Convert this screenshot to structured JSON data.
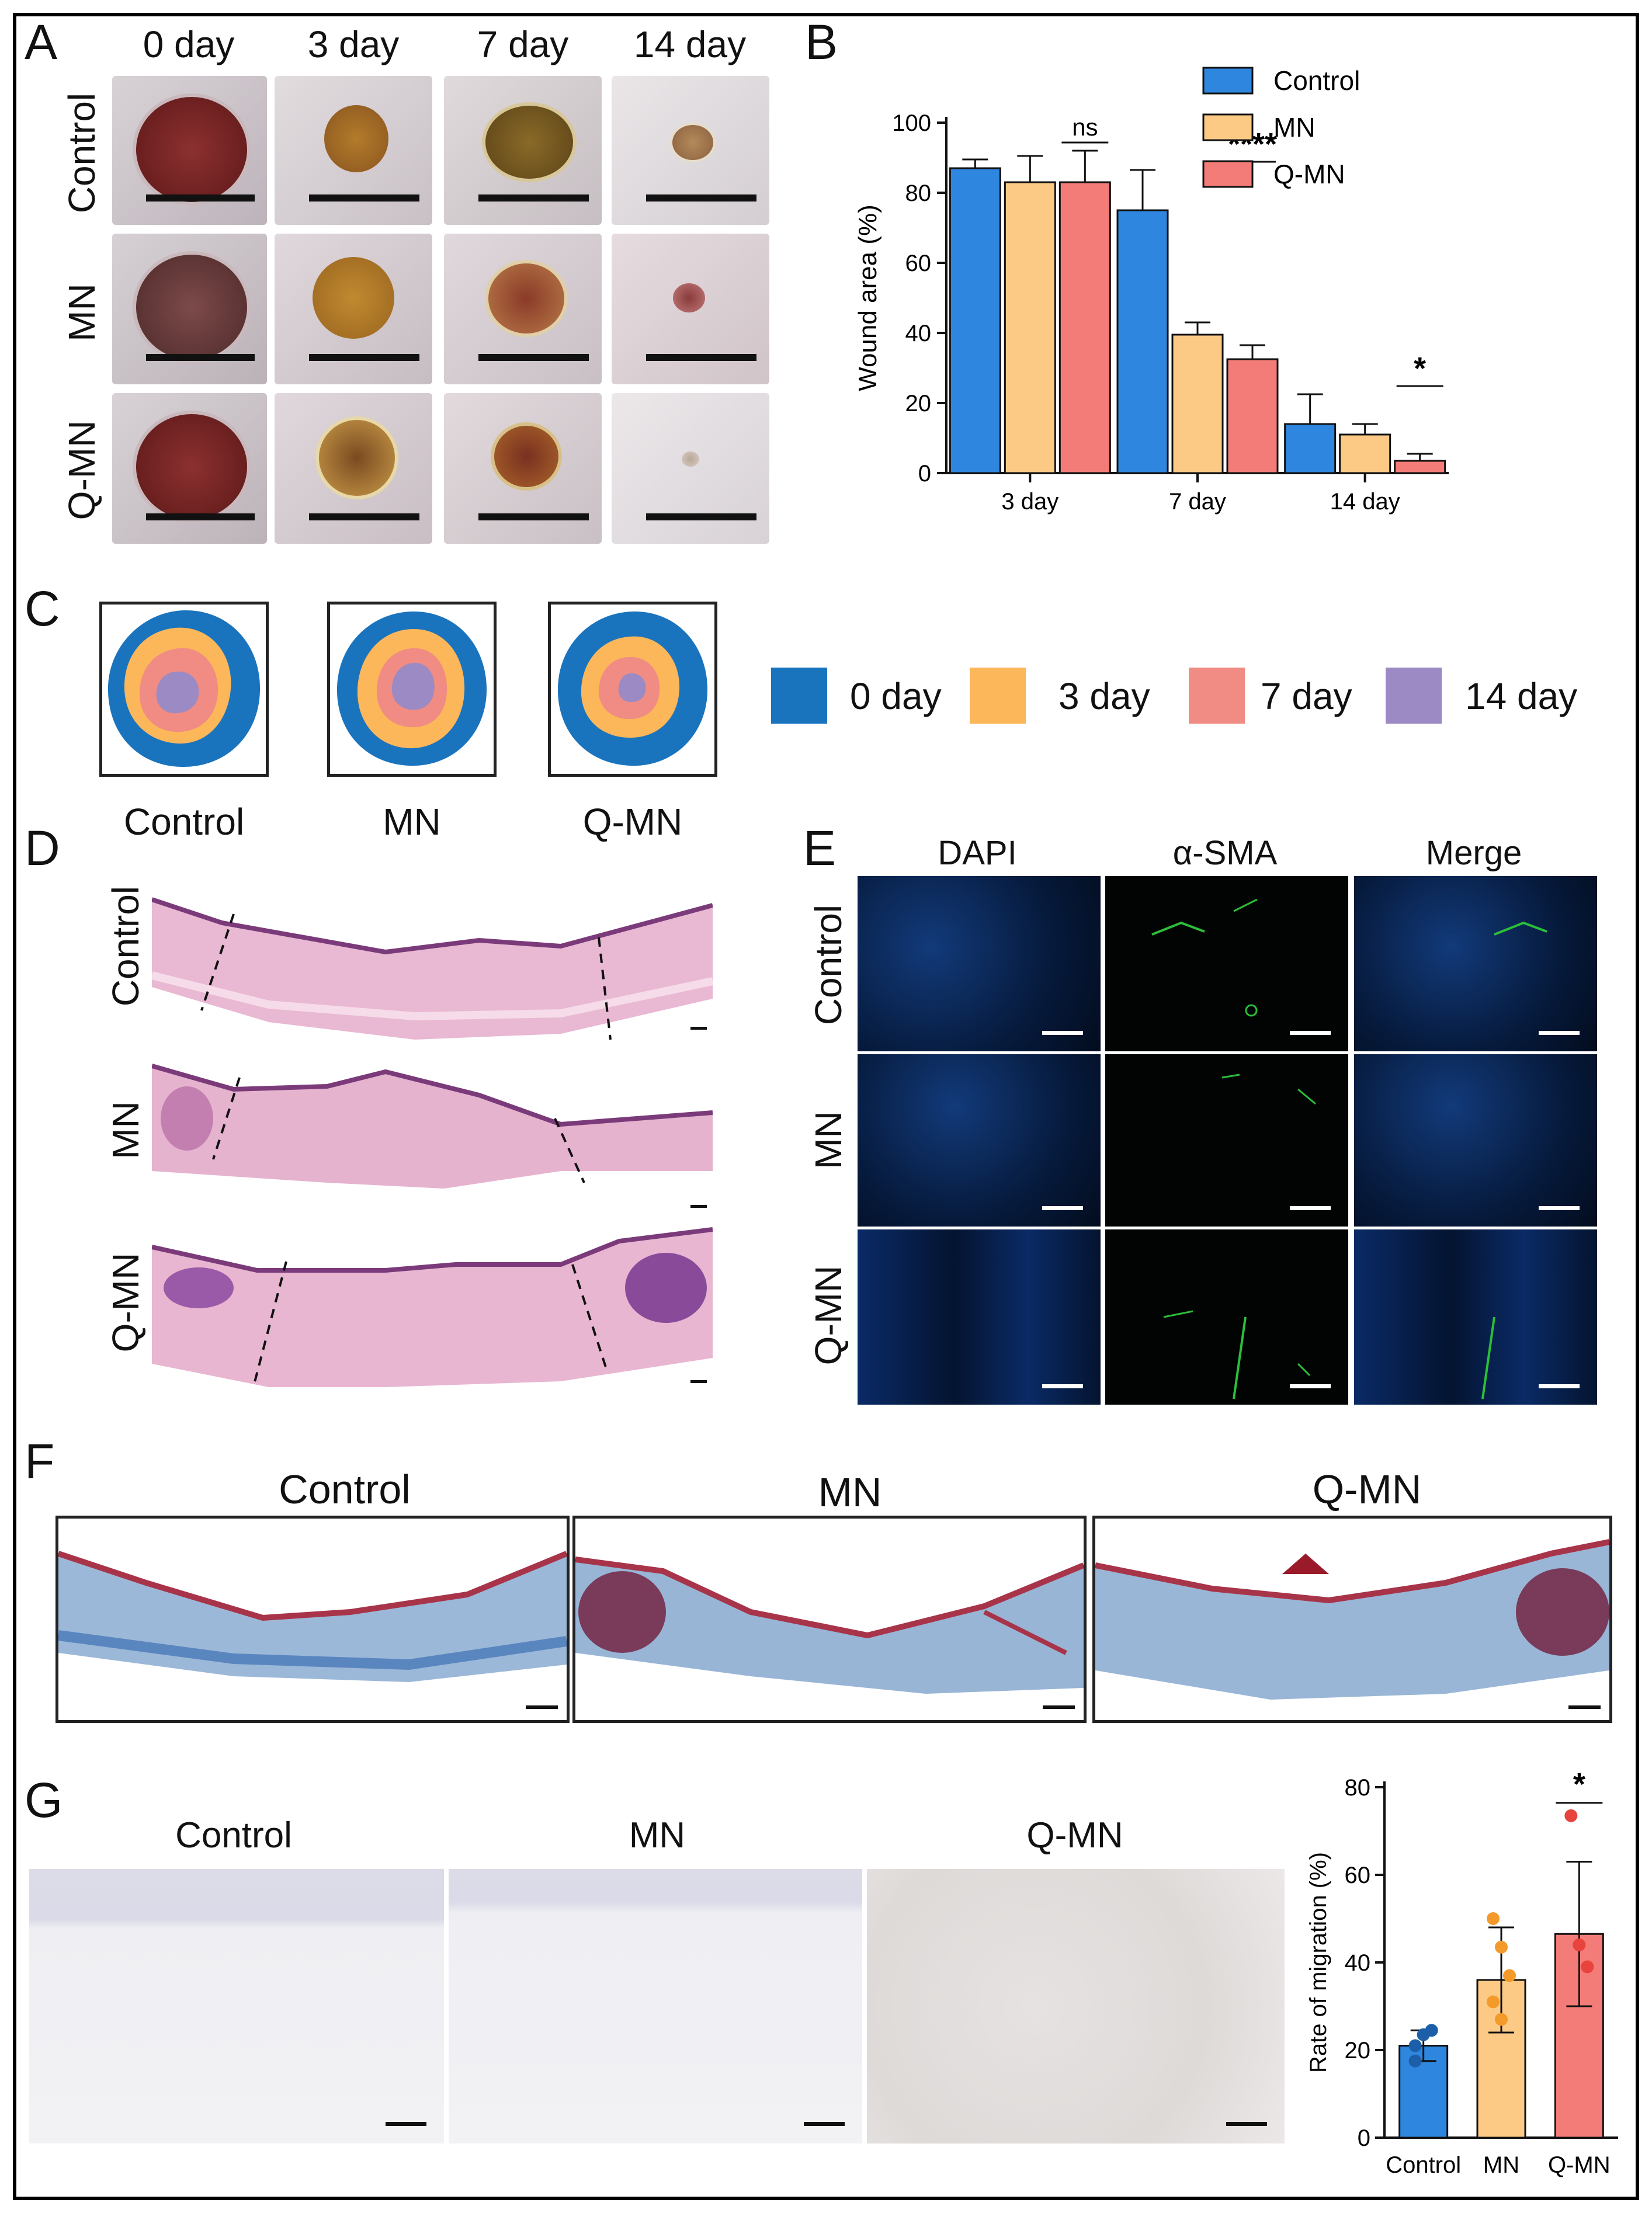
{
  "panels": {
    "A": {
      "label": "A",
      "columns": [
        "0 day",
        "3 day",
        "7 day",
        "14 day"
      ],
      "rows": [
        "Control",
        "MN",
        "Q-MN"
      ]
    },
    "B": {
      "label": "B"
    },
    "C": {
      "label": "C",
      "groups": [
        "Control",
        "MN",
        "Q-MN"
      ],
      "legend": [
        {
          "label": "0 day",
          "color": "#1a74bd"
        },
        {
          "label": "3 day",
          "color": "#fbb75a"
        },
        {
          "label": "7 day",
          "color": "#f08c83"
        },
        {
          "label": "14 day",
          "color": "#9b8ac4"
        }
      ]
    },
    "D": {
      "label": "D",
      "rows": [
        "Control",
        "MN",
        "Q-MN"
      ]
    },
    "E": {
      "label": "E",
      "columns": [
        "DAPI",
        "α-SMA",
        "Merge"
      ],
      "rows": [
        "Control",
        "MN",
        "Q-MN"
      ]
    },
    "F": {
      "label": "F",
      "columns": [
        "Control",
        "MN",
        "Q-MN"
      ]
    },
    "G": {
      "label": "G",
      "columns": [
        "Control",
        "MN",
        "Q-MN"
      ]
    }
  },
  "chart_data": [
    {
      "type": "bar",
      "categories": [
        "3 day",
        "7 day",
        "14 day"
      ],
      "series": [
        {
          "name": "Control",
          "color": "#2e86de",
          "values": [
            87,
            75,
            14
          ],
          "errors": [
            2.5,
            11.5,
            8.5
          ]
        },
        {
          "name": "MN",
          "color": "#fdca86",
          "values": [
            83,
            39.5,
            11
          ],
          "errors": [
            7.5,
            3.5,
            3
          ]
        },
        {
          "name": "Q-MN",
          "color": "#f47c78",
          "values": [
            83,
            32.5,
            3.5
          ],
          "errors": [
            9,
            4,
            2
          ]
        }
      ],
      "ylabel": "Wound area (%)",
      "ylim": [
        0,
        100
      ],
      "yticks": [
        0,
        20,
        40,
        60,
        80,
        100
      ],
      "legend_position": "top-right",
      "annotations": [
        {
          "text": "ns",
          "category": "3 day"
        },
        {
          "text": "****",
          "category": "7 day"
        },
        {
          "text": "*",
          "category": "14 day"
        }
      ]
    },
    {
      "type": "bar",
      "categories": [
        "Control",
        "MN",
        "Q-MN"
      ],
      "values": [
        21,
        36,
        46.5
      ],
      "errors": [
        3.5,
        12,
        16.5
      ],
      "colors": [
        "#2e86de",
        "#fdca86",
        "#f47c78"
      ],
      "dot_colors": [
        "#1c5fa8",
        "#f39a2a",
        "#e8433c"
      ],
      "points": [
        [
          17.5,
          23.5,
          24.5,
          21
        ],
        [
          50,
          43.5,
          37,
          31,
          27
        ],
        [
          73.5,
          44,
          39
        ]
      ],
      "ylabel": "Rate of migration (%)",
      "ylim": [
        0,
        80
      ],
      "yticks": [
        0,
        20,
        40,
        60,
        80
      ],
      "annotations": [
        {
          "text": "*",
          "category": "Q-MN"
        }
      ]
    }
  ]
}
